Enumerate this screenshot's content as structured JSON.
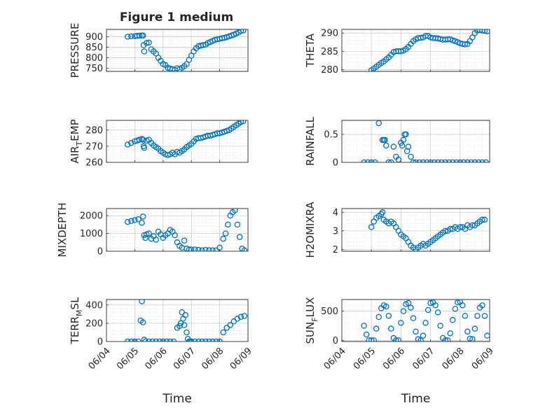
{
  "figure_title": "Figure 1 medium",
  "marker_color": "#0072BD",
  "chart_data": [
    {
      "type": "scatter",
      "ylabel": "PRESSURE",
      "xlim": [
        "06/04",
        "06/09"
      ],
      "ylim": [
        735,
        935
      ],
      "yticks": [
        750,
        800,
        850,
        900
      ],
      "ytick_labels": [
        "750",
        "800",
        "850",
        "900"
      ],
      "grid": true,
      "minor_grid": true,
      "x": [
        "06/04 18:00",
        "06/04 21:00",
        "06/05 00:00",
        "06/05 02:00",
        "06/05 04:00",
        "06/05 06:00",
        "06/05 07:00",
        "06/05 07:30",
        "06/05 08:00",
        "06/05 10:00",
        "06/05 12:00",
        "06/05 14:00",
        "06/05 16:00",
        "06/05 18:00",
        "06/05 20:00",
        "06/05 22:00",
        "06/06 00:00",
        "06/06 02:00",
        "06/06 04:00",
        "06/06 06:00",
        "06/06 08:00",
        "06/06 10:00",
        "06/06 12:00",
        "06/06 14:00",
        "06/06 16:00",
        "06/06 18:00",
        "06/06 20:00",
        "06/06 22:00",
        "06/07 00:00",
        "06/07 02:00",
        "06/07 04:00",
        "06/07 06:00",
        "06/07 08:00",
        "06/07 10:00",
        "06/07 12:00",
        "06/07 14:00",
        "06/07 16:00",
        "06/07 18:00",
        "06/07 20:00",
        "06/07 22:00",
        "06/08 00:00",
        "06/08 02:00",
        "06/08 04:00",
        "06/08 06:00",
        "06/08 08:00",
        "06/08 10:00",
        "06/08 12:00",
        "06/08 14:00",
        "06/08 16:00",
        "06/08 18:00",
        "06/08 20:00"
      ],
      "y": [
        900,
        902,
        903,
        904,
        905,
        906,
        906,
        860,
        830,
        870,
        872,
        840,
        830,
        820,
        800,
        785,
        770,
        765,
        752,
        748,
        746,
        742,
        750,
        745,
        752,
        760,
        770,
        790,
        810,
        830,
        845,
        855,
        858,
        860,
        862,
        870,
        875,
        880,
        885,
        888,
        890,
        893,
        895,
        898,
        902,
        906,
        910,
        915,
        920,
        928,
        930
      ]
    },
    {
      "type": "scatter",
      "ylabel": "THETA",
      "xlim": [
        "06/04",
        "06/09"
      ],
      "ylim": [
        279.5,
        291
      ],
      "yticks": [
        280,
        285,
        290
      ],
      "ytick_labels": [
        "280",
        "285",
        "290"
      ],
      "grid": true,
      "minor_grid": true,
      "x": [
        "06/05 00:00",
        "06/05 02:00",
        "06/05 04:00",
        "06/05 06:00",
        "06/05 08:00",
        "06/05 10:00",
        "06/05 12:00",
        "06/05 14:00",
        "06/05 16:00",
        "06/05 18:00",
        "06/05 20:00",
        "06/05 22:00",
        "06/06 00:00",
        "06/06 02:00",
        "06/06 04:00",
        "06/06 06:00",
        "06/06 08:00",
        "06/06 10:00",
        "06/06 12:00",
        "06/06 14:00",
        "06/06 16:00",
        "06/06 18:00",
        "06/06 20:00",
        "06/06 22:00",
        "06/07 00:00",
        "06/07 02:00",
        "06/07 04:00",
        "06/07 06:00",
        "06/07 08:00",
        "06/07 10:00",
        "06/07 12:00",
        "06/07 14:00",
        "06/07 16:00",
        "06/07 18:00",
        "06/07 20:00",
        "06/07 22:00",
        "06/08 00:00",
        "06/08 02:00",
        "06/08 04:00",
        "06/08 06:00",
        "06/08 08:00",
        "06/08 10:00",
        "06/08 12:00",
        "06/08 14:00",
        "06/08 16:00",
        "06/08 18:00",
        "06/08 20:00",
        "06/08 22:00"
      ],
      "y": [
        279.8,
        280.3,
        280.8,
        281.3,
        281.8,
        282.2,
        282.8,
        283.3,
        284.0,
        284.8,
        285.0,
        285.0,
        285.0,
        285.2,
        285.6,
        286.2,
        287.0,
        287.8,
        288.3,
        288.6,
        288.7,
        288.8,
        289.2,
        289.2,
        288.8,
        288.6,
        288.6,
        288.5,
        288.4,
        288.2,
        288.2,
        288.3,
        288.3,
        288.0,
        287.8,
        287.5,
        287.2,
        287.0,
        286.9,
        287.0,
        287.8,
        288.8,
        290.0,
        290.7,
        290.8,
        290.7,
        290.6,
        290.5
      ]
    },
    {
      "type": "scatter",
      "ylabel": "AIR",
      "ylabel_sub": "T",
      "ylabel_tail": "EMP",
      "xlim": [
        "06/04",
        "06/09"
      ],
      "ylim": [
        260,
        286
      ],
      "yticks": [
        260,
        270,
        280
      ],
      "ytick_labels": [
        "260",
        "270",
        "280"
      ],
      "grid": true,
      "minor_grid": true,
      "x": [
        "06/04 18:00",
        "06/04 21:00",
        "06/05 00:00",
        "06/05 02:00",
        "06/05 04:00",
        "06/05 06:00",
        "06/05 07:00",
        "06/05 07:30",
        "06/05 08:00",
        "06/05 10:00",
        "06/05 12:00",
        "06/05 14:00",
        "06/05 16:00",
        "06/05 18:00",
        "06/05 20:00",
        "06/05 22:00",
        "06/06 00:00",
        "06/06 02:00",
        "06/06 04:00",
        "06/06 06:00",
        "06/06 08:00",
        "06/06 10:00",
        "06/06 12:00",
        "06/06 14:00",
        "06/06 16:00",
        "06/06 18:00",
        "06/06 20:00",
        "06/06 22:00",
        "06/07 00:00",
        "06/07 02:00",
        "06/07 04:00",
        "06/07 06:00",
        "06/07 08:00",
        "06/07 10:00",
        "06/07 12:00",
        "06/07 14:00",
        "06/07 16:00",
        "06/07 18:00",
        "06/07 20:00",
        "06/07 22:00",
        "06/08 00:00",
        "06/08 02:00",
        "06/08 04:00",
        "06/08 06:00",
        "06/08 08:00",
        "06/08 10:00",
        "06/08 12:00",
        "06/08 14:00",
        "06/08 16:00",
        "06/08 18:00",
        "06/08 20:00"
      ],
      "y": [
        271.0,
        272.0,
        273.0,
        273.5,
        274.0,
        274.5,
        274.0,
        270.0,
        269.0,
        273.5,
        274.0,
        272.0,
        270.5,
        269.5,
        268.5,
        267.0,
        266.0,
        265.0,
        264.5,
        265.0,
        266.0,
        265.0,
        266.5,
        266.0,
        267.0,
        268.0,
        269.5,
        270.5,
        271.5,
        273.0,
        274.5,
        275.0,
        275.0,
        275.5,
        276.0,
        276.5,
        276.5,
        277.0,
        277.5,
        278.0,
        278.0,
        278.5,
        279.0,
        279.5,
        280.0,
        281.0,
        282.0,
        283.0,
        284.0,
        285.0,
        285.5
      ]
    },
    {
      "type": "scatter",
      "ylabel": "RAINFALL",
      "xlim": [
        "06/04",
        "06/09"
      ],
      "ylim": [
        0,
        0.75
      ],
      "yticks": [
        0,
        0.5
      ],
      "ytick_labels": [
        "0",
        "0.5"
      ],
      "grid": true,
      "minor_grid": true,
      "x": [
        "06/04 18:00",
        "06/04 21:00",
        "06/05 00:00",
        "06/05 03:00",
        "06/05 06:00",
        "06/05 09:00",
        "06/05 10:00",
        "06/05 11:00",
        "06/05 12:00",
        "06/05 14:00",
        "06/05 16:00",
        "06/05 18:00",
        "06/05 20:00",
        "06/05 22:00",
        "06/06 00:00",
        "06/06 01:00",
        "06/06 02:00",
        "06/06 03:00",
        "06/06 04:00",
        "06/06 05:00",
        "06/06 06:00",
        "06/06 08:00",
        "06/06 10:00",
        "06/06 12:00",
        "06/06 15:00",
        "06/06 18:00",
        "06/06 21:00",
        "06/07 00:00",
        "06/07 03:00",
        "06/07 06:00",
        "06/07 09:00",
        "06/07 12:00",
        "06/07 15:00",
        "06/07 18:00",
        "06/07 21:00",
        "06/08 00:00",
        "06/08 03:00",
        "06/08 06:00",
        "06/08 09:00",
        "06/08 12:00",
        "06/08 15:00",
        "06/08 18:00",
        "06/08 21:00"
      ],
      "y": [
        0,
        0,
        0,
        0,
        0.7,
        0.4,
        0.4,
        0.4,
        0.3,
        0,
        0,
        0.28,
        0.1,
        0.05,
        0.35,
        0.3,
        0.4,
        0.5,
        0.5,
        0.2,
        0.28,
        0.1,
        0,
        0,
        0,
        0,
        0,
        0,
        0,
        0,
        0,
        0,
        0,
        0,
        0,
        0,
        0,
        0,
        0,
        0,
        0,
        0,
        0
      ]
    },
    {
      "type": "scatter",
      "ylabel": "MIXDEPTH",
      "xlim": [
        "06/04",
        "06/09"
      ],
      "ylim": [
        0,
        2400
      ],
      "yticks": [
        0,
        1000,
        2000
      ],
      "ytick_labels": [
        "0",
        "1000",
        "2000"
      ],
      "grid": true,
      "minor_grid": true,
      "x": [
        "06/04 18:00",
        "06/04 21:00",
        "06/05 00:00",
        "06/05 03:00",
        "06/05 06:00",
        "06/05 07:00",
        "06/05 08:00",
        "06/05 09:00",
        "06/05 10:00",
        "06/05 12:00",
        "06/05 14:00",
        "06/05 16:00",
        "06/05 18:00",
        "06/05 20:00",
        "06/05 22:00",
        "06/06 00:00",
        "06/06 02:00",
        "06/06 04:00",
        "06/06 06:00",
        "06/06 08:00",
        "06/06 10:00",
        "06/06 12:00",
        "06/06 14:00",
        "06/06 16:00",
        "06/06 18:00",
        "06/06 20:00",
        "06/06 22:00",
        "06/07 00:00",
        "06/07 03:00",
        "06/07 06:00",
        "06/07 09:00",
        "06/07 12:00",
        "06/07 15:00",
        "06/07 18:00",
        "06/07 21:00",
        "06/08 00:00",
        "06/08 03:00",
        "06/08 05:00",
        "06/08 07:00",
        "06/08 09:00",
        "06/08 11:00",
        "06/08 13:00",
        "06/08 15:00",
        "06/08 17:00",
        "06/08 19:00",
        "06/08 21:00"
      ],
      "y": [
        1650,
        1700,
        1750,
        1800,
        1600,
        1950,
        900,
        750,
        950,
        1000,
        700,
        850,
        650,
        1100,
        950,
        750,
        900,
        1000,
        1200,
        1100,
        900,
        500,
        300,
        200,
        600,
        150,
        100,
        100,
        100,
        80,
        50,
        80,
        60,
        50,
        40,
        200,
        700,
        1000,
        1500,
        2000,
        2200,
        2300,
        1500,
        800,
        150,
        50
      ]
    },
    {
      "type": "scatter",
      "ylabel": "H2OMIXRA",
      "xlim": [
        "06/04",
        "06/09"
      ],
      "ylim": [
        1.9,
        4.2
      ],
      "yticks": [
        2,
        3,
        4
      ],
      "ytick_labels": [
        "2",
        "3",
        "4"
      ],
      "grid": true,
      "minor_grid": true,
      "x": [
        "06/05 00:00",
        "06/05 02:00",
        "06/05 04:00",
        "06/05 06:00",
        "06/05 08:00",
        "06/05 09:00",
        "06/05 10:00",
        "06/05 12:00",
        "06/05 14:00",
        "06/05 16:00",
        "06/05 18:00",
        "06/05 20:00",
        "06/05 22:00",
        "06/06 00:00",
        "06/06 02:00",
        "06/06 04:00",
        "06/06 06:00",
        "06/06 08:00",
        "06/06 10:00",
        "06/06 12:00",
        "06/06 14:00",
        "06/06 16:00",
        "06/06 18:00",
        "06/06 20:00",
        "06/06 22:00",
        "06/07 00:00",
        "06/07 02:00",
        "06/07 04:00",
        "06/07 06:00",
        "06/07 08:00",
        "06/07 10:00",
        "06/07 12:00",
        "06/07 14:00",
        "06/07 16:00",
        "06/07 18:00",
        "06/07 20:00",
        "06/07 22:00",
        "06/08 00:00",
        "06/08 02:00",
        "06/08 04:00",
        "06/08 06:00",
        "06/08 08:00",
        "06/08 10:00",
        "06/08 12:00",
        "06/08 14:00",
        "06/08 16:00",
        "06/08 18:00",
        "06/08 20:00"
      ],
      "y": [
        3.2,
        3.5,
        3.7,
        3.8,
        3.9,
        4.0,
        3.6,
        3.5,
        3.4,
        3.5,
        3.4,
        3.2,
        3.0,
        2.8,
        2.7,
        2.6,
        2.4,
        2.2,
        2.1,
        2.0,
        2.1,
        2.2,
        2.3,
        2.2,
        2.3,
        2.4,
        2.5,
        2.6,
        2.7,
        2.8,
        2.9,
        3.0,
        3.0,
        3.1,
        3.1,
        3.2,
        3.1,
        3.2,
        3.2,
        3.1,
        3.3,
        3.2,
        3.3,
        3.3,
        3.4,
        3.5,
        3.6,
        3.6
      ]
    },
    {
      "type": "scatter",
      "ylabel": "TERR",
      "ylabel_sub": "M",
      "ylabel_tail": "SL",
      "xlim": [
        "06/04",
        "06/09"
      ],
      "ylim": [
        0,
        460
      ],
      "yticks": [
        0,
        200,
        400
      ],
      "ytick_labels": [
        "0",
        "200",
        "400"
      ],
      "grid": true,
      "minor_grid": true,
      "xtick_labels": [
        "06/04",
        "06/05",
        "06/06",
        "06/07",
        "06/08",
        "06/09"
      ],
      "xlabel": "Time",
      "x": [
        "06/04 18:00",
        "06/04 21:00",
        "06/05 00:00",
        "06/05 03:00",
        "06/05 05:00",
        "06/05 06:00",
        "06/05 07:00",
        "06/05 08:00",
        "06/05 09:00",
        "06/05 12:00",
        "06/05 15:00",
        "06/05 18:00",
        "06/05 21:00",
        "06/06 00:00",
        "06/06 03:00",
        "06/06 06:00",
        "06/06 09:00",
        "06/06 12:00",
        "06/06 14:00",
        "06/06 15:00",
        "06/06 16:00",
        "06/06 17:00",
        "06/06 18:00",
        "06/06 19:00",
        "06/06 20:00",
        "06/06 21:00",
        "06/06 22:00",
        "06/06 23:00",
        "06/07 00:00",
        "06/07 03:00",
        "06/07 06:00",
        "06/07 09:00",
        "06/07 12:00",
        "06/07 15:00",
        "06/07 18:00",
        "06/07 21:00",
        "06/08 00:00",
        "06/08 03:00",
        "06/08 06:00",
        "06/08 09:00",
        "06/08 12:00",
        "06/08 15:00",
        "06/08 18:00",
        "06/08 21:00"
      ],
      "y": [
        0,
        0,
        0,
        0,
        230,
        440,
        210,
        20,
        0,
        0,
        0,
        0,
        0,
        0,
        0,
        0,
        0,
        150,
        170,
        200,
        320,
        250,
        180,
        290,
        100,
        30,
        0,
        0,
        0,
        0,
        0,
        0,
        0,
        0,
        0,
        0,
        0,
        100,
        150,
        180,
        220,
        250,
        270,
        280
      ]
    },
    {
      "type": "scatter",
      "ylabel": "SUN",
      "ylabel_sub": "F",
      "ylabel_tail": "LUX",
      "xlim": [
        "06/04",
        "06/09"
      ],
      "ylim": [
        -20,
        700
      ],
      "yticks": [
        0,
        500
      ],
      "ytick_labels": [
        "0",
        "500"
      ],
      "grid": true,
      "minor_grid": true,
      "xtick_labels": [
        "06/04",
        "06/05",
        "06/06",
        "06/07",
        "06/08",
        "06/09"
      ],
      "xlabel": "Time",
      "x": [
        "06/04 18:00",
        "06/04 20:00",
        "06/04 22:00",
        "06/05 00:00",
        "06/05 02:00",
        "06/05 04:00",
        "06/05 06:00",
        "06/05 08:00",
        "06/05 10:00",
        "06/05 12:00",
        "06/05 14:00",
        "06/05 16:00",
        "06/05 18:00",
        "06/05 20:00",
        "06/05 22:00",
        "06/06 00:00",
        "06/06 02:00",
        "06/06 04:00",
        "06/06 06:00",
        "06/06 08:00",
        "06/06 10:00",
        "06/06 12:00",
        "06/06 14:00",
        "06/06 16:00",
        "06/06 18:00",
        "06/06 20:00",
        "06/06 22:00",
        "06/07 00:00",
        "06/07 02:00",
        "06/07 04:00",
        "06/07 06:00",
        "06/07 08:00",
        "06/07 10:00",
        "06/07 12:00",
        "06/07 14:00",
        "06/07 16:00",
        "06/07 18:00",
        "06/07 20:00",
        "06/07 22:00",
        "06/08 00:00",
        "06/08 02:00",
        "06/08 04:00",
        "06/08 06:00",
        "06/08 08:00",
        "06/08 10:00",
        "06/08 12:00",
        "06/08 14:00",
        "06/08 16:00",
        "06/08 18:00",
        "06/08 20:00",
        "06/08 22:00"
      ],
      "y": [
        250,
        100,
        0,
        0,
        0,
        200,
        400,
        550,
        600,
        580,
        420,
        200,
        40,
        0,
        0,
        300,
        500,
        620,
        640,
        560,
        380,
        150,
        20,
        0,
        80,
        300,
        520,
        640,
        650,
        600,
        480,
        250,
        40,
        0,
        0,
        120,
        350,
        540,
        650,
        660,
        600,
        420,
        150,
        30,
        20,
        200,
        420,
        560,
        600,
        420,
        80
      ]
    }
  ]
}
